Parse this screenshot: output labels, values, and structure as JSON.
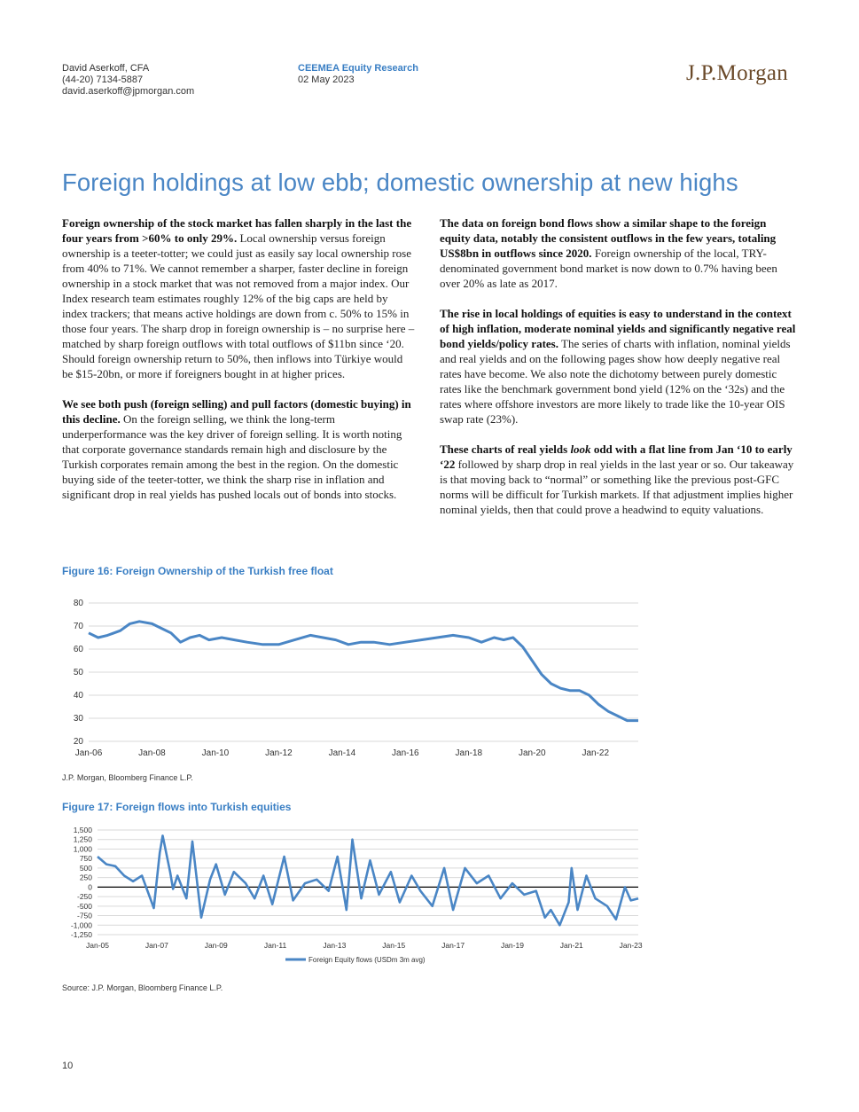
{
  "header": {
    "author": "David Aserkoff, CFA",
    "phone": "(44-20) 7134-5887",
    "email": "david.aserkoff@jpmorgan.com",
    "publication": "CEEMEA Equity Research",
    "date": "02 May 2023",
    "logo": "J.P.Morgan"
  },
  "title": "Foreign holdings at low ebb; domestic ownership at new highs",
  "left_column": [
    {
      "bold": "Foreign ownership of the stock market has fallen sharply in the last the four years from >60% to only 29%.",
      "text": " Local ownership versus foreign ownership is a teeter-totter; we could just as easily say local ownership rose from 40% to 71%. We cannot remember a sharper, faster decline in foreign ownership in a stock market that was not removed from a major index. Our Index research team estimates roughly 12% of the big caps are held by index trackers; that means active holdings are down from c. 50% to 15% in those four years. The sharp drop in foreign ownership is – no surprise here – matched by sharp foreign outflows with total outflows of $11bn since ‘20. Should foreign ownership return to 50%, then inflows into Türkiye would be $15-20bn, or more if foreigners bought in at higher prices."
    },
    {
      "bold": "We see both push (foreign selling) and pull factors (domestic buying) in this decline.",
      "text": " On the foreign selling, we think the long-term underperformance was the key driver of foreign selling. It is worth noting that corporate governance standards remain high and disclosure by the Turkish corporates remain among the best in the region. On the domestic buying side of the teeter-totter, we think the sharp rise in inflation and significant drop in real yields has pushed locals out of bonds into stocks."
    }
  ],
  "right_column": {
    "p1_bold": "The data on foreign bond flows show a similar shape to the foreign equity data, notably the consistent outflows in the few years, totaling US$8bn in outflows since 2020.",
    "p1_text": " Foreign ownership of the local, TRY-denominated government bond market is now down to 0.7% having been over 20% as late as 2017.",
    "p2_bold": "The rise in local holdings of equities is easy to understand in the context of high inflation, moderate nominal yields and significantly negative real bond yields/policy rates.",
    "p2_text": " The series of charts with inflation, nominal yields and real yields and on the following pages show how deeply negative real rates have become. We also note the dichotomy between purely domestic rates like the benchmark government bond yield (12% on the ‘32s) and the rates where offshore investors are more likely to trade like the 10-year OIS swap rate (23%).",
    "p3_bold_a": "These charts of real yields ",
    "p3_bold_italic": "look",
    "p3_bold_b": " odd with a flat line from Jan ‘10 to early ‘22",
    "p3_text": " followed by sharp drop in real yields in the last year or so. Our takeaway is that moving back to “normal” or something like the previous post-GFC norms will be difficult for Turkish markets. If that adjustment implies higher nominal yields, then that could prove a headwind to equity valuations."
  },
  "fig16": {
    "title": "Figure 16: Foreign Ownership of the Turkish free float",
    "source": "J.P. Morgan, Bloomberg Finance L.P."
  },
  "fig17": {
    "title": "Figure 17: Foreign flows into Turkish equities",
    "source": "Source: J.P. Morgan, Bloomberg Finance L.P."
  },
  "page_number": "10",
  "chart_data": [
    {
      "type": "line",
      "title": "Figure 16: Foreign Ownership of the Turkish free float",
      "ylim": [
        20,
        80
      ],
      "yticks": [
        20,
        30,
        40,
        50,
        60,
        70,
        80
      ],
      "xticks": [
        "Jan-06",
        "Jan-08",
        "Jan-10",
        "Jan-12",
        "Jan-14",
        "Jan-16",
        "Jan-18",
        "Jan-20",
        "Jan-22"
      ],
      "xrange": [
        2006.0,
        2023.35
      ],
      "color": "#4a86c5",
      "grid": true,
      "x": [
        2006.0,
        2006.3,
        2006.6,
        2007.0,
        2007.3,
        2007.6,
        2008.0,
        2008.3,
        2008.6,
        2008.9,
        2009.2,
        2009.5,
        2009.8,
        2010.2,
        2010.6,
        2011.0,
        2011.5,
        2012.0,
        2012.5,
        2013.0,
        2013.4,
        2013.8,
        2014.2,
        2014.6,
        2015.0,
        2015.5,
        2016.0,
        2016.5,
        2017.0,
        2017.5,
        2018.0,
        2018.4,
        2018.8,
        2019.1,
        2019.4,
        2019.7,
        2020.0,
        2020.3,
        2020.6,
        2020.9,
        2021.2,
        2021.5,
        2021.8,
        2022.1,
        2022.4,
        2022.7,
        2023.0,
        2023.35
      ],
      "values": [
        67,
        65,
        66,
        68,
        71,
        72,
        71,
        69,
        67,
        63,
        65,
        66,
        64,
        65,
        64,
        63,
        62,
        62,
        64,
        66,
        65,
        64,
        62,
        63,
        63,
        62,
        63,
        64,
        65,
        66,
        65,
        63,
        65,
        64,
        65,
        61,
        55,
        49,
        45,
        43,
        42,
        42,
        40,
        36,
        33,
        31,
        29,
        29
      ]
    },
    {
      "type": "line",
      "title": "Figure 17: Foreign flows into Turkish equities",
      "ylim": [
        -1250,
        1500
      ],
      "yticks": [
        -1250,
        -1000,
        -750,
        -500,
        -250,
        0,
        250,
        500,
        750,
        1000,
        1250,
        1500
      ],
      "xticks": [
        "Jan-05",
        "Jan-07",
        "Jan-09",
        "Jan-11",
        "Jan-13",
        "Jan-15",
        "Jan-17",
        "Jan-19",
        "Jan-21",
        "Jan-23"
      ],
      "xrange": [
        2005.0,
        2023.25
      ],
      "color": "#4a86c5",
      "grid": true,
      "legend": "Foreign Equity flows (USDm 3m avg)",
      "legend_position": "bottom",
      "x": [
        2005.0,
        2005.3,
        2005.6,
        2005.9,
        2006.2,
        2006.5,
        2006.9,
        2007.1,
        2007.2,
        2007.45,
        2007.55,
        2007.7,
        2008.0,
        2008.2,
        2008.5,
        2008.8,
        2009.0,
        2009.3,
        2009.6,
        2010.0,
        2010.3,
        2010.6,
        2010.9,
        2011.3,
        2011.6,
        2012.0,
        2012.4,
        2012.8,
        2013.1,
        2013.4,
        2013.6,
        2013.9,
        2014.2,
        2014.5,
        2014.9,
        2015.2,
        2015.6,
        2015.9,
        2016.3,
        2016.7,
        2017.0,
        2017.4,
        2017.8,
        2018.2,
        2018.6,
        2019.0,
        2019.4,
        2019.8,
        2020.1,
        2020.3,
        2020.6,
        2020.9,
        2021.0,
        2021.2,
        2021.5,
        2021.8,
        2022.2,
        2022.5,
        2022.8,
        2023.0,
        2023.25
      ],
      "values": [
        800,
        600,
        550,
        300,
        150,
        300,
        -550,
        900,
        1350,
        400,
        -50,
        300,
        -300,
        1200,
        -800,
        200,
        600,
        -200,
        400,
        100,
        -300,
        300,
        -450,
        800,
        -350,
        100,
        200,
        -100,
        800,
        -600,
        1250,
        -300,
        700,
        -200,
        400,
        -400,
        300,
        -100,
        -500,
        500,
        -600,
        500,
        100,
        300,
        -300,
        100,
        -200,
        -100,
        -800,
        -600,
        -1000,
        -400,
        500,
        -600,
        300,
        -300,
        -500,
        -850,
        0,
        -350,
        -300
      ]
    }
  ]
}
